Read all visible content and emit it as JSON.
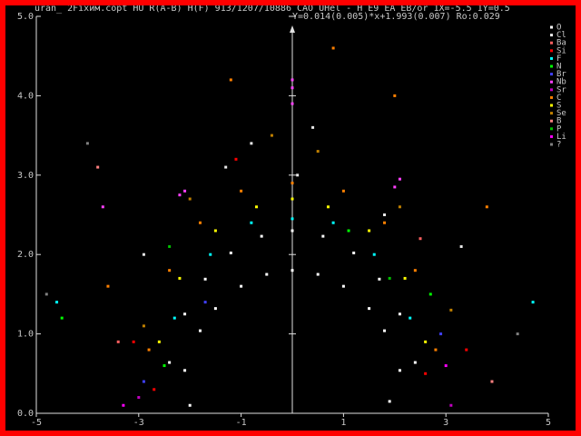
{
  "chart_data": {
    "type": "scatter",
    "title": "uran_ 2Fixим.copt HU R(A-B) H(F) 913/1207/10886 CAO UHel - H E9 EA EB/or 1X=-5.5 1Y=0.5",
    "subtitle": "Y=0.014(0.005)*x+1.993(0.007) Ro:0.029",
    "xlim": [
      -5,
      5
    ],
    "ylim": [
      0,
      5
    ],
    "xticks": [
      -5,
      -3,
      -1,
      1,
      3,
      5
    ],
    "yticks": [
      {
        "value": 0,
        "label": "0.0"
      },
      {
        "value": 1,
        "label": "1.0"
      },
      {
        "value": 2,
        "label": "2.0"
      },
      {
        "value": 3,
        "label": "3.0"
      },
      {
        "value": 4,
        "label": "4.0"
      },
      {
        "value": 5,
        "label": "5.0"
      }
    ],
    "series": [
      {
        "name": "O",
        "color": "#ffffff",
        "x": [
          -2.1,
          -1.8,
          -1.5,
          -1.0,
          -0.5,
          0,
          0.5,
          1.0,
          1.5,
          1.8,
          2.1,
          -2.4,
          -2.1,
          -1.7,
          -1.2,
          -0.6,
          0,
          0.6,
          1.2,
          1.7,
          2.1,
          2.4,
          -2.0,
          1.9
        ],
        "values": [
          0.54,
          1.04,
          1.32,
          1.6,
          1.75,
          1.8,
          1.75,
          1.6,
          1.32,
          1.04,
          0.54,
          0.64,
          1.25,
          1.69,
          2.02,
          2.23,
          2.3,
          2.23,
          2.02,
          1.69,
          1.25,
          0.64,
          0.1,
          0.15
        ]
      },
      {
        "name": "Cl",
        "color": "#e8e8e8",
        "x": [
          -1.3,
          0.4,
          1.8,
          -2.9,
          0.1,
          3.3,
          -0.8
        ],
        "values": [
          3.1,
          3.6,
          2.5,
          2.0,
          3.0,
          2.1,
          3.4
        ]
      },
      {
        "name": "Ba",
        "color": "#ff6060",
        "x": [
          -3.4,
          2.5
        ],
        "values": [
          0.9,
          2.2
        ]
      },
      {
        "name": "Si",
        "color": "#ff0000",
        "x": [
          -2.7,
          -3.1,
          2.6,
          3.4,
          -1.1
        ],
        "values": [
          0.3,
          0.9,
          0.5,
          0.8,
          3.2
        ]
      },
      {
        "name": "F",
        "color": "#00ffff",
        "x": [
          -2.3,
          -1.6,
          -0.8,
          0,
          0.8,
          1.6,
          2.3,
          -4.6,
          4.7
        ],
        "values": [
          1.2,
          2.0,
          2.4,
          2.45,
          2.4,
          2.0,
          1.2,
          1.4,
          1.4
        ]
      },
      {
        "name": "N",
        "color": "#00ff00",
        "x": [
          -2.5,
          2.7,
          1.1,
          -4.5
        ],
        "values": [
          0.6,
          1.5,
          2.3,
          1.2
        ]
      },
      {
        "name": "Br",
        "color": "#4040ff",
        "x": [
          -2.9,
          2.9,
          -1.7
        ],
        "values": [
          0.4,
          1.0,
          1.4
        ]
      },
      {
        "name": "Nb",
        "color": "#ff40ff",
        "x": [
          0,
          0,
          0,
          -2.2,
          -2.1,
          2.1,
          2.0,
          -3.7
        ],
        "values": [
          3.9,
          4.1,
          4.2,
          2.75,
          2.8,
          2.95,
          2.85,
          2.6
        ]
      },
      {
        "name": "Sr",
        "color": "#c000c0",
        "x": [
          -3.0,
          3.1
        ],
        "values": [
          0.2,
          0.1
        ]
      },
      {
        "name": "C",
        "color": "#ff8000",
        "x": [
          -2.8,
          -2.4,
          -1.8,
          -1.0,
          0,
          1.0,
          1.8,
          2.4,
          2.8,
          -3.6,
          3.8,
          -1.2,
          2.0,
          0.8
        ],
        "values": [
          0.8,
          1.8,
          2.4,
          2.8,
          2.9,
          2.8,
          2.4,
          1.8,
          0.8,
          1.6,
          2.6,
          4.2,
          4.0,
          4.6
        ]
      },
      {
        "name": "S",
        "color": "#ffff00",
        "x": [
          -2.6,
          -2.2,
          -1.5,
          -0.7,
          0,
          0.7,
          1.5,
          2.2,
          2.6
        ],
        "values": [
          0.9,
          1.7,
          2.3,
          2.6,
          2.7,
          2.6,
          2.3,
          1.7,
          0.9
        ]
      },
      {
        "name": "Se",
        "color": "#c08000",
        "x": [
          -2.9,
          -2.0,
          0.5,
          2.1,
          3.1,
          -0.4
        ],
        "values": [
          1.1,
          2.7,
          3.3,
          2.6,
          1.3,
          3.5
        ]
      },
      {
        "name": "B",
        "color": "#ff8080",
        "x": [
          -3.8,
          3.9
        ],
        "values": [
          3.1,
          0.4
        ]
      },
      {
        "name": "P",
        "color": "#00c000",
        "x": [
          1.9,
          -2.4
        ],
        "values": [
          1.7,
          2.1
        ]
      },
      {
        "name": "Li",
        "color": "#ff00ff",
        "x": [
          -3.3,
          3.0
        ],
        "values": [
          0.1,
          0.6
        ]
      },
      {
        "name": "?",
        "color": "#808080",
        "x": [
          -4.8,
          4.4,
          -4.0
        ],
        "values": [
          1.5,
          1.0,
          3.4
        ]
      }
    ]
  }
}
